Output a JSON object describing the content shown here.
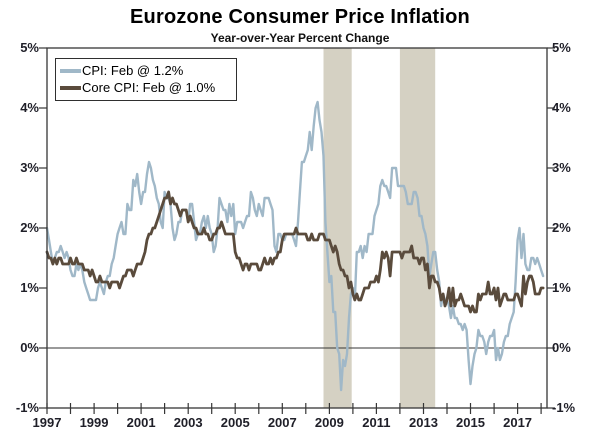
{
  "chart_data": {
    "type": "line",
    "title": "Eurozone Consumer Price Inflation",
    "subtitle": "Year-over-Year Percent Change",
    "xlim": [
      1997,
      2018.25
    ],
    "ylim": [
      -1,
      5
    ],
    "x_start_year": 1997,
    "points_per_year": 12,
    "axis_color": "#363636",
    "label_color": "#1f1f28",
    "grid": "zero-line-only",
    "legend_position": "top-left",
    "y_ticks": [
      {
        "value": 5,
        "label": "5%"
      },
      {
        "value": 4,
        "label": "4%"
      },
      {
        "value": 3,
        "label": "3%"
      },
      {
        "value": 2,
        "label": "2%"
      },
      {
        "value": 1,
        "label": "1%"
      },
      {
        "value": 0,
        "label": "0%"
      },
      {
        "value": -1,
        "label": "-1%"
      }
    ],
    "x_labels": [
      {
        "value": 1997,
        "label": "1997"
      },
      {
        "value": 1999,
        "label": "1999"
      },
      {
        "value": 2001,
        "label": "2001"
      },
      {
        "value": 2003,
        "label": "2003"
      },
      {
        "value": 2005,
        "label": "2005"
      },
      {
        "value": 2007,
        "label": "2007"
      },
      {
        "value": 2009,
        "label": "2009"
      },
      {
        "value": 2011,
        "label": "2011"
      },
      {
        "value": 2013,
        "label": "2013"
      },
      {
        "value": 2015,
        "label": "2015"
      },
      {
        "value": 2017,
        "label": "2017"
      }
    ],
    "recession_bands": {
      "color": "#d5d1c3",
      "ranges": [
        [
          2008.75,
          2009.95
        ],
        [
          2012.0,
          2013.5
        ]
      ]
    },
    "series": [
      {
        "name": "CPI",
        "legend": "CPI: Feb @ 1.2%",
        "color": "#a0b8c8",
        "stroke_width": 2.4,
        "values": [
          2.0,
          1.8,
          1.6,
          1.4,
          1.5,
          1.6,
          1.6,
          1.7,
          1.6,
          1.5,
          1.6,
          1.5,
          1.3,
          1.2,
          1.2,
          1.4,
          1.3,
          1.4,
          1.3,
          1.1,
          1.0,
          0.9,
          0.8,
          0.8,
          0.8,
          0.8,
          1.0,
          1.1,
          1.0,
          0.9,
          1.1,
          1.2,
          1.2,
          1.4,
          1.5,
          1.7,
          1.9,
          2.0,
          2.1,
          1.9,
          1.9,
          2.4,
          2.3,
          2.3,
          2.8,
          2.7,
          2.9,
          2.6,
          2.4,
          2.6,
          2.6,
          2.9,
          3.1,
          3.0,
          2.8,
          2.7,
          2.5,
          2.4,
          2.1,
          2.0,
          2.6,
          2.5,
          2.5,
          2.4,
          2.0,
          1.8,
          1.9,
          2.1,
          2.1,
          2.3,
          2.3,
          2.3,
          2.1,
          2.4,
          2.4,
          2.1,
          1.8,
          1.9,
          1.9,
          2.1,
          2.2,
          2.0,
          2.2,
          2.0,
          1.9,
          1.6,
          1.7,
          2.0,
          2.5,
          2.4,
          2.3,
          2.3,
          2.1,
          2.4,
          2.2,
          2.4,
          1.9,
          2.1,
          2.1,
          2.1,
          2.0,
          2.1,
          2.2,
          2.2,
          2.6,
          2.5,
          2.3,
          2.2,
          2.4,
          2.3,
          2.2,
          2.5,
          2.5,
          2.5,
          2.4,
          2.3,
          1.7,
          1.6,
          1.9,
          1.9,
          1.8,
          1.8,
          1.9,
          1.9,
          1.9,
          1.9,
          1.8,
          1.7,
          2.1,
          2.6,
          3.1,
          3.1,
          3.2,
          3.3,
          3.6,
          3.3,
          3.7,
          4.0,
          4.1,
          3.8,
          3.6,
          3.2,
          2.1,
          1.6,
          1.1,
          1.2,
          0.6,
          0.6,
          0.0,
          -0.1,
          -0.7,
          -0.2,
          -0.3,
          -0.1,
          0.5,
          0.9,
          1.0,
          0.8,
          1.6,
          1.6,
          1.7,
          1.5,
          1.7,
          1.6,
          1.9,
          1.9,
          1.9,
          2.2,
          2.3,
          2.4,
          2.7,
          2.8,
          2.7,
          2.7,
          2.6,
          2.5,
          3.0,
          3.0,
          3.0,
          2.7,
          2.7,
          2.7,
          2.7,
          2.6,
          2.4,
          2.4,
          2.4,
          2.6,
          2.6,
          2.5,
          2.2,
          2.2,
          2.0,
          1.9,
          1.7,
          1.2,
          1.4,
          1.6,
          1.6,
          1.3,
          1.1,
          0.7,
          0.9,
          0.8,
          0.8,
          0.7,
          0.5,
          0.7,
          0.5,
          0.5,
          0.4,
          0.4,
          0.3,
          0.4,
          0.3,
          -0.2,
          -0.6,
          -0.3,
          -0.1,
          0.0,
          0.3,
          0.2,
          0.2,
          0.1,
          -0.1,
          0.1,
          0.2,
          0.2,
          0.3,
          -0.2,
          0.0,
          -0.2,
          -0.1,
          0.1,
          0.2,
          0.2,
          0.4,
          0.5,
          0.6,
          1.1,
          1.8,
          2.0,
          1.5,
          1.9,
          1.4,
          1.3,
          1.3,
          1.5,
          1.5,
          1.4,
          1.5,
          1.4,
          1.3,
          1.2
        ]
      },
      {
        "name": "Core CPI",
        "legend": "Core CPI: Feb @ 1.0%",
        "color": "#5a4b3c",
        "stroke_width": 2.8,
        "values": [
          1.6,
          1.5,
          1.5,
          1.4,
          1.5,
          1.4,
          1.5,
          1.5,
          1.4,
          1.4,
          1.4,
          1.4,
          1.5,
          1.4,
          1.4,
          1.5,
          1.4,
          1.4,
          1.4,
          1.3,
          1.3,
          1.3,
          1.2,
          1.3,
          1.2,
          1.1,
          1.1,
          1.2,
          1.1,
          1.1,
          1.1,
          1.1,
          1.0,
          1.1,
          1.1,
          1.1,
          1.1,
          1.0,
          1.1,
          1.2,
          1.2,
          1.3,
          1.3,
          1.3,
          1.2,
          1.3,
          1.4,
          1.4,
          1.4,
          1.5,
          1.6,
          1.8,
          1.9,
          1.9,
          2.0,
          2.0,
          2.1,
          2.2,
          2.3,
          2.4,
          2.5,
          2.5,
          2.6,
          2.4,
          2.5,
          2.4,
          2.4,
          2.3,
          2.2,
          2.3,
          2.3,
          2.3,
          2.1,
          2.2,
          2.1,
          2.0,
          2.0,
          1.9,
          1.9,
          1.9,
          2.0,
          1.9,
          1.9,
          1.8,
          1.8,
          1.9,
          1.9,
          2.0,
          2.0,
          2.1,
          2.0,
          1.9,
          1.9,
          1.9,
          1.9,
          1.9,
          1.6,
          1.5,
          1.5,
          1.4,
          1.3,
          1.4,
          1.4,
          1.3,
          1.4,
          1.4,
          1.4,
          1.4,
          1.3,
          1.3,
          1.4,
          1.5,
          1.4,
          1.4,
          1.5,
          1.4,
          1.5,
          1.5,
          1.6,
          1.6,
          1.8,
          1.9,
          1.9,
          1.9,
          1.9,
          1.9,
          1.9,
          2.0,
          1.9,
          1.9,
          1.9,
          1.9,
          1.9,
          1.8,
          1.8,
          1.9,
          1.8,
          1.8,
          1.8,
          1.9,
          1.9,
          1.9,
          1.8,
          1.8,
          1.8,
          1.7,
          1.6,
          1.7,
          1.6,
          1.4,
          1.3,
          1.3,
          1.2,
          1.2,
          1.0,
          1.1,
          0.9,
          0.8,
          0.9,
          0.8,
          0.8,
          0.9,
          1.0,
          1.0,
          1.0,
          1.1,
          1.1,
          1.1,
          1.2,
          1.1,
          1.3,
          1.6,
          1.5,
          1.6,
          1.5,
          1.2,
          1.6,
          1.6,
          1.6,
          1.6,
          1.6,
          1.5,
          1.6,
          1.6,
          1.6,
          1.6,
          1.7,
          1.5,
          1.5,
          1.5,
          1.4,
          1.5,
          1.5,
          1.3,
          1.4,
          1.0,
          1.2,
          1.2,
          1.1,
          1.1,
          1.0,
          0.8,
          0.9,
          0.7,
          0.8,
          1.0,
          0.7,
          1.0,
          0.7,
          0.8,
          0.8,
          0.9,
          0.8,
          0.7,
          0.7,
          0.7,
          0.6,
          0.7,
          0.6,
          0.6,
          0.9,
          0.8,
          0.9,
          0.9,
          0.9,
          1.1,
          0.9,
          0.9,
          1.0,
          0.8,
          1.0,
          0.7,
          0.8,
          0.9,
          0.9,
          0.8,
          0.8,
          0.8,
          0.8,
          0.9,
          0.9,
          0.8,
          0.7,
          1.2,
          0.9,
          1.1,
          1.2,
          1.2,
          1.1,
          0.9,
          0.9,
          0.9,
          1.0,
          1.0
        ]
      }
    ]
  }
}
